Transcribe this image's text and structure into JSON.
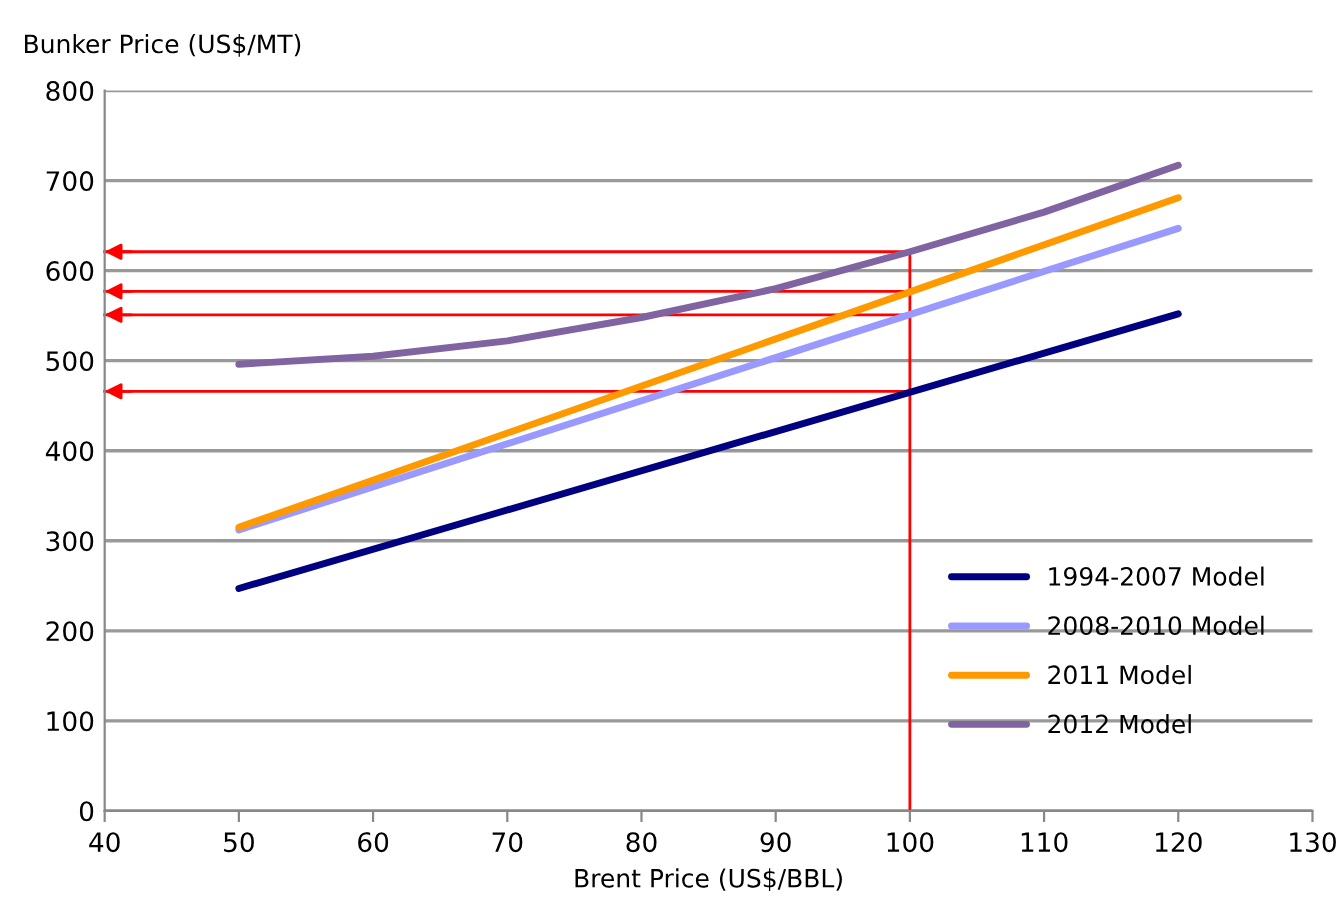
{
  "chart_data": {
    "type": "line",
    "xlabel": "Brent Price (US$/BBL)",
    "ylabel": "Bunker Price (US$/MT)",
    "xlim": [
      40,
      130
    ],
    "xticks": [
      40,
      50,
      60,
      70,
      80,
      90,
      100,
      110,
      120,
      130
    ],
    "ylim": [
      0,
      800
    ],
    "yticks": [
      0,
      100,
      200,
      300,
      400,
      500,
      600,
      700,
      800
    ],
    "grid": "y",
    "legend": "right",
    "marker": "none",
    "line_style": "solid",
    "series": [
      {
        "name": "1994-2007 Model",
        "color": "#000080",
        "x": [
          50,
          120
        ],
        "values": [
          247,
          552
        ]
      },
      {
        "name": "2008-2010 Model",
        "color": "#9999ff",
        "x": [
          50,
          120
        ],
        "values": [
          312,
          647
        ]
      },
      {
        "name": "2011 Model",
        "color": "#ff9900",
        "x": [
          50,
          120
        ],
        "values": [
          315,
          681
        ]
      },
      {
        "name": "2012 Model",
        "color": "#8064a2",
        "x": [
          50,
          60,
          70,
          80,
          90,
          100,
          110,
          120
        ],
        "values": [
          496,
          505,
          522,
          548,
          580,
          621,
          665,
          717
        ]
      }
    ],
    "ref_lines": [
      {
        "axis": "x",
        "value": 100,
        "label": null,
        "color": "#ff0000"
      },
      {
        "axis": "y",
        "value": 621,
        "label": null,
        "color": "#ff0000"
      },
      {
        "axis": "y",
        "value": 577,
        "label": null,
        "color": "#ff0000"
      },
      {
        "axis": "y",
        "value": 551,
        "label": null,
        "color": "#ff0000"
      },
      {
        "axis": "y",
        "value": 466,
        "label": null,
        "color": "#ff0000"
      }
    ]
  }
}
